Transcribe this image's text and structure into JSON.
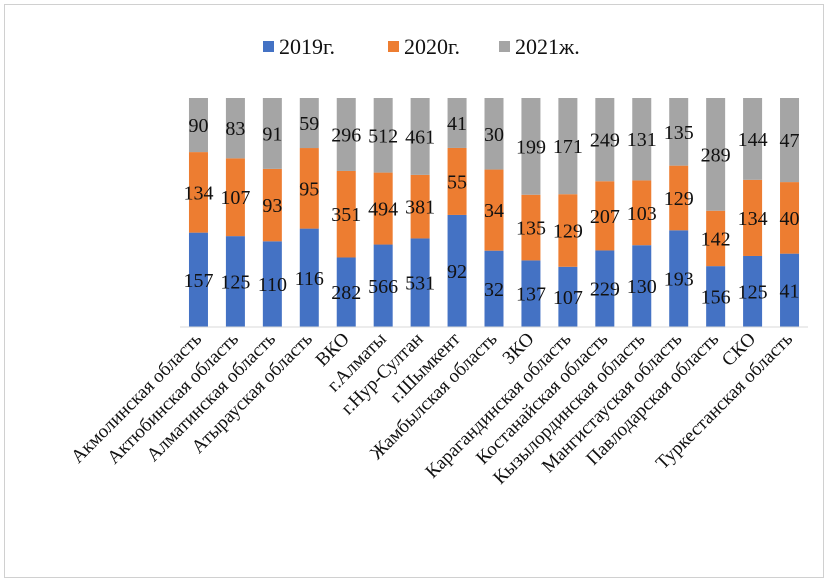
{
  "chart_data": {
    "type": "bar",
    "stacked": "percent",
    "categories": [
      "Акмолинская область",
      "Актюбинская область",
      "Алматинская область",
      "Атырауская область",
      "ВКО",
      "г.Алматы",
      "г.Нур-Султан",
      "г.Шымкент",
      "Жамбылская область",
      "ЗКО",
      "Карагандинская область",
      "Костанайская область",
      "Кызылординская область",
      "Мангистауская область",
      "Павлодарская область",
      "СКО",
      "Туркестанская область"
    ],
    "series": [
      {
        "name": "2019г.",
        "color": "#4472C4",
        "values": [
          157,
          125,
          110,
          116,
          282,
          566,
          531,
          92,
          32,
          137,
          107,
          229,
          130,
          193,
          156,
          125,
          41
        ]
      },
      {
        "name": "2020г.",
        "color": "#ED7D31",
        "values": [
          134,
          107,
          93,
          95,
          351,
          494,
          381,
          55,
          34,
          135,
          129,
          207,
          103,
          129,
          142,
          134,
          40
        ]
      },
      {
        "name": "2021ж.",
        "color": "#A5A5A5",
        "values": [
          90,
          83,
          91,
          59,
          296,
          512,
          461,
          41,
          30,
          199,
          171,
          249,
          131,
          135,
          289,
          144,
          47
        ]
      }
    ],
    "legend": "top",
    "grid": false
  }
}
